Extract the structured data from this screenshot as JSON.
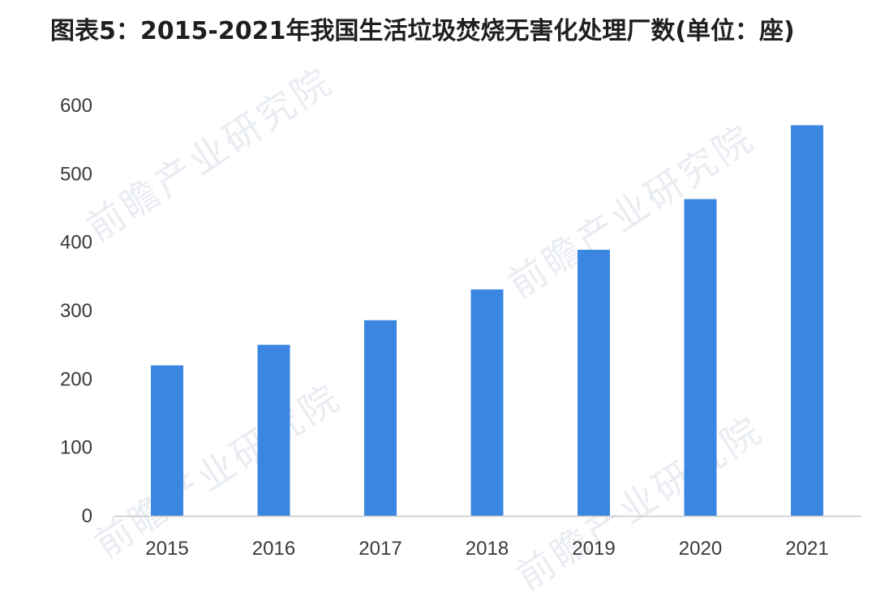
{
  "title": "图表5：2015-2021年我国生活垃圾焚烧无害化处理厂数(单位：座)",
  "watermark_text": "前瞻产业研究院",
  "colors": {
    "bar": "#3a86e0",
    "axis": "#c8c8c8",
    "text": "#3a3a3a",
    "watermark": "#e9edf2"
  },
  "chart_data": {
    "type": "bar",
    "title": "图表5：2015-2021年我国生活垃圾焚烧无害化处理厂数(单位：座)",
    "categories": [
      "2015",
      "2016",
      "2017",
      "2018",
      "2019",
      "2020",
      "2021"
    ],
    "values": [
      220,
      250,
      286,
      331,
      389,
      463,
      571
    ],
    "xlabel": "",
    "ylabel": "",
    "ylim": [
      0,
      600
    ],
    "yticks": [
      0,
      100,
      200,
      300,
      400,
      500,
      600
    ],
    "grid": false,
    "legend": "none"
  }
}
